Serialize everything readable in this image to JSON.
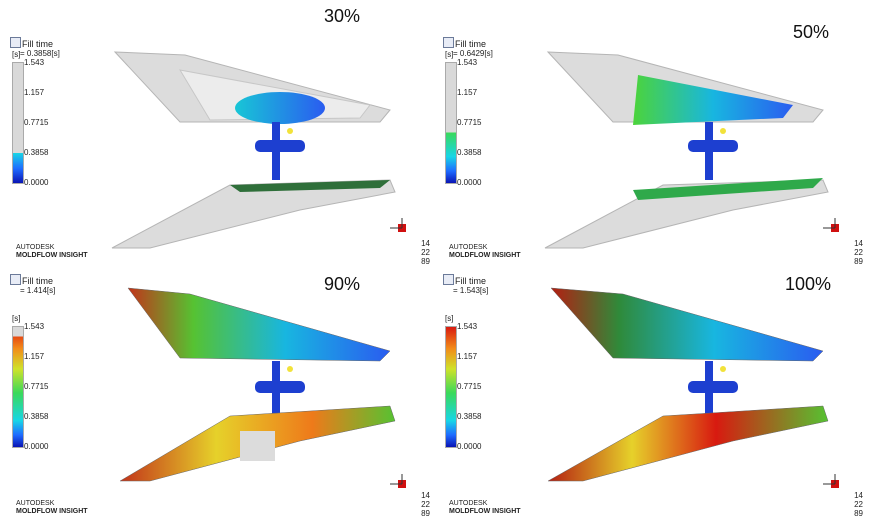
{
  "panels": [
    {
      "percent": "30%",
      "title": "Fill time",
      "value": "= 0.3858[s]",
      "unit": "[s]",
      "ticks": [
        "1.543",
        "1.157",
        "0.7715",
        "0.3858",
        "0.0000"
      ],
      "brand_top": "AUTODESK",
      "brand_bottom": "MOLDFLOW INSIGHT",
      "nums": [
        "14",
        "22",
        "89"
      ],
      "fill_fraction": 0.25
    },
    {
      "percent": "50%",
      "title": "Fill time",
      "value": "= 0.6429[s]",
      "unit": "[s]",
      "ticks": [
        "1.543",
        "1.157",
        "0.7715",
        "0.3858",
        "0.0000"
      ],
      "brand_top": "AUTODESK",
      "brand_bottom": "MOLDFLOW INSIGHT",
      "nums": [
        "14",
        "22",
        "89"
      ],
      "fill_fraction": 0.42
    },
    {
      "percent": "90%",
      "title": "Fill time",
      "value": "= 1.414[s]",
      "unit": "[s]",
      "ticks": [
        "1.543",
        "1.157",
        "0.7715",
        "0.3858",
        "0.0000"
      ],
      "brand_top": "AUTODESK",
      "brand_bottom": "MOLDFLOW INSIGHT",
      "nums": [
        "14",
        "22",
        "89"
      ],
      "fill_fraction": 0.92
    },
    {
      "percent": "100%",
      "title": "Fill time",
      "value": "= 1.543[s]",
      "unit": "[s]",
      "ticks": [
        "1.543",
        "1.157",
        "0.7715",
        "0.3858",
        "0.0000"
      ],
      "brand_top": "AUTODESK",
      "brand_bottom": "MOLDFLOW INSIGHT",
      "nums": [
        "14",
        "22",
        "89"
      ],
      "fill_fraction": 1.0
    }
  ],
  "axis_labels": {
    "x": "X",
    "y": "Y",
    "z": "Z"
  },
  "colors": {
    "unfilled": "#d9d9d9",
    "runner": "#1d3fd0",
    "gate": "#f2e23a"
  }
}
